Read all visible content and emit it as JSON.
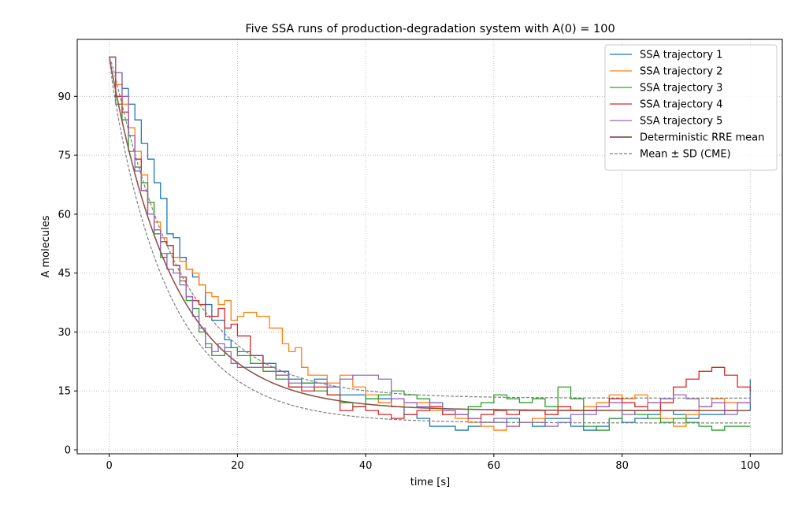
{
  "chart_data": {
    "type": "line",
    "title": "Five SSA runs of production-degradation system with A(0) = 100",
    "xlabel": "time [s]",
    "ylabel": "A molecules",
    "xlim": [
      -5,
      105
    ],
    "ylim": [
      -1,
      104.5
    ],
    "xticks": [
      0,
      20,
      40,
      60,
      80,
      100
    ],
    "yticks": [
      0,
      15,
      30,
      45,
      60,
      75,
      90
    ],
    "grid": true,
    "legend_position": "top-right",
    "series": [
      {
        "name": "SSA trajectory 1",
        "color": "#1f77b4",
        "style": "step",
        "points": [
          [
            0,
            100
          ],
          [
            1,
            96
          ],
          [
            2,
            92
          ],
          [
            3,
            88
          ],
          [
            4,
            84
          ],
          [
            5,
            78
          ],
          [
            6,
            74
          ],
          [
            7,
            68
          ],
          [
            8,
            64
          ],
          [
            9,
            55
          ],
          [
            10,
            54
          ],
          [
            11,
            49
          ],
          [
            12,
            46
          ],
          [
            13,
            44
          ],
          [
            14,
            42
          ],
          [
            15,
            37
          ],
          [
            16,
            33
          ],
          [
            18,
            28
          ],
          [
            19,
            26
          ],
          [
            20,
            25
          ],
          [
            22,
            24
          ],
          [
            24,
            22
          ],
          [
            26,
            20
          ],
          [
            28,
            18
          ],
          [
            30,
            17
          ],
          [
            32,
            18
          ],
          [
            34,
            16
          ],
          [
            36,
            14
          ],
          [
            40,
            13
          ],
          [
            44,
            11
          ],
          [
            46,
            9
          ],
          [
            48,
            8
          ],
          [
            50,
            6
          ],
          [
            52,
            6
          ],
          [
            54,
            5
          ],
          [
            56,
            6
          ],
          [
            58,
            7
          ],
          [
            60,
            7
          ],
          [
            62,
            8
          ],
          [
            64,
            7
          ],
          [
            66,
            6
          ],
          [
            68,
            8
          ],
          [
            70,
            8
          ],
          [
            72,
            6
          ],
          [
            74,
            5
          ],
          [
            76,
            6
          ],
          [
            78,
            8
          ],
          [
            80,
            7
          ],
          [
            82,
            8
          ],
          [
            84,
            9
          ],
          [
            86,
            10
          ],
          [
            88,
            9
          ],
          [
            90,
            8
          ],
          [
            92,
            9
          ],
          [
            94,
            9
          ],
          [
            96,
            10
          ],
          [
            98,
            10
          ],
          [
            100,
            18
          ]
        ]
      },
      {
        "name": "SSA trajectory 2",
        "color": "#ff7f0e",
        "style": "step",
        "points": [
          [
            0,
            100
          ],
          [
            1,
            93
          ],
          [
            2,
            88
          ],
          [
            3,
            82
          ],
          [
            4,
            76
          ],
          [
            5,
            70
          ],
          [
            6,
            63
          ],
          [
            7,
            58
          ],
          [
            8,
            54
          ],
          [
            9,
            52
          ],
          [
            10,
            49
          ],
          [
            11,
            48
          ],
          [
            12,
            46
          ],
          [
            13,
            45
          ],
          [
            14,
            42
          ],
          [
            15,
            40
          ],
          [
            16,
            39
          ],
          [
            17,
            37
          ],
          [
            18,
            38
          ],
          [
            19,
            33
          ],
          [
            20,
            34
          ],
          [
            21,
            35
          ],
          [
            23,
            34
          ],
          [
            25,
            31
          ],
          [
            27,
            27
          ],
          [
            28,
            25
          ],
          [
            29,
            26
          ],
          [
            30,
            21
          ],
          [
            31,
            19
          ],
          [
            34,
            17
          ],
          [
            36,
            19
          ],
          [
            38,
            16
          ],
          [
            40,
            14
          ],
          [
            42,
            12
          ],
          [
            44,
            11
          ],
          [
            46,
            12
          ],
          [
            48,
            12
          ],
          [
            50,
            10
          ],
          [
            52,
            9
          ],
          [
            54,
            8
          ],
          [
            56,
            7
          ],
          [
            58,
            6
          ],
          [
            60,
            5
          ],
          [
            62,
            6
          ],
          [
            64,
            7
          ],
          [
            66,
            8
          ],
          [
            68,
            9
          ],
          [
            70,
            10
          ],
          [
            72,
            10
          ],
          [
            74,
            11
          ],
          [
            76,
            12
          ],
          [
            78,
            14
          ],
          [
            80,
            13
          ],
          [
            82,
            14
          ],
          [
            84,
            12
          ],
          [
            86,
            8
          ],
          [
            88,
            6
          ],
          [
            90,
            9
          ],
          [
            92,
            11
          ],
          [
            94,
            13
          ],
          [
            96,
            12
          ],
          [
            98,
            12
          ],
          [
            100,
            13
          ]
        ]
      },
      {
        "name": "SSA trajectory 3",
        "color": "#2ca02c",
        "style": "step",
        "points": [
          [
            0,
            100
          ],
          [
            1,
            88
          ],
          [
            2,
            84
          ],
          [
            3,
            76
          ],
          [
            4,
            72
          ],
          [
            5,
            68
          ],
          [
            6,
            63
          ],
          [
            7,
            55
          ],
          [
            8,
            49
          ],
          [
            9,
            50
          ],
          [
            10,
            47
          ],
          [
            11,
            43
          ],
          [
            12,
            38
          ],
          [
            13,
            36
          ],
          [
            14,
            30
          ],
          [
            15,
            27
          ],
          [
            16,
            24
          ],
          [
            18,
            26
          ],
          [
            20,
            24
          ],
          [
            22,
            22
          ],
          [
            24,
            20
          ],
          [
            26,
            18
          ],
          [
            28,
            16
          ],
          [
            30,
            17
          ],
          [
            32,
            15
          ],
          [
            34,
            14
          ],
          [
            36,
            12
          ],
          [
            38,
            11
          ],
          [
            40,
            13
          ],
          [
            42,
            14
          ],
          [
            44,
            15
          ],
          [
            46,
            14
          ],
          [
            48,
            13
          ],
          [
            50,
            12
          ],
          [
            52,
            10
          ],
          [
            54,
            9
          ],
          [
            56,
            11
          ],
          [
            58,
            12
          ],
          [
            60,
            14
          ],
          [
            62,
            13
          ],
          [
            64,
            12
          ],
          [
            66,
            13
          ],
          [
            68,
            11
          ],
          [
            70,
            16
          ],
          [
            72,
            13
          ],
          [
            74,
            6
          ],
          [
            76,
            5
          ],
          [
            78,
            8
          ],
          [
            80,
            10
          ],
          [
            82,
            9
          ],
          [
            84,
            8
          ],
          [
            86,
            7
          ],
          [
            88,
            8
          ],
          [
            90,
            7
          ],
          [
            92,
            6
          ],
          [
            94,
            5
          ],
          [
            96,
            6
          ],
          [
            98,
            6
          ],
          [
            100,
            6
          ]
        ]
      },
      {
        "name": "SSA trajectory 4",
        "color": "#d62728",
        "style": "step",
        "points": [
          [
            0,
            100
          ],
          [
            1,
            90
          ],
          [
            2,
            86
          ],
          [
            3,
            80
          ],
          [
            4,
            74
          ],
          [
            5,
            66
          ],
          [
            6,
            60
          ],
          [
            7,
            56
          ],
          [
            8,
            53
          ],
          [
            9,
            52
          ],
          [
            10,
            47
          ],
          [
            11,
            44
          ],
          [
            12,
            39
          ],
          [
            13,
            38
          ],
          [
            14,
            37
          ],
          [
            15,
            34
          ],
          [
            17,
            36
          ],
          [
            18,
            31
          ],
          [
            19,
            32
          ],
          [
            20,
            29
          ],
          [
            22,
            24
          ],
          [
            24,
            21
          ],
          [
            26,
            19
          ],
          [
            28,
            16
          ],
          [
            30,
            15
          ],
          [
            32,
            16
          ],
          [
            34,
            14
          ],
          [
            36,
            10
          ],
          [
            38,
            11
          ],
          [
            40,
            10
          ],
          [
            42,
            9
          ],
          [
            44,
            8
          ],
          [
            46,
            9
          ],
          [
            48,
            10
          ],
          [
            50,
            11
          ],
          [
            52,
            9
          ],
          [
            54,
            9
          ],
          [
            56,
            8
          ],
          [
            58,
            9
          ],
          [
            60,
            10
          ],
          [
            62,
            9
          ],
          [
            64,
            10
          ],
          [
            66,
            10
          ],
          [
            68,
            9
          ],
          [
            70,
            11
          ],
          [
            72,
            10
          ],
          [
            74,
            10
          ],
          [
            76,
            11
          ],
          [
            78,
            13
          ],
          [
            80,
            12
          ],
          [
            82,
            11
          ],
          [
            84,
            10
          ],
          [
            86,
            12
          ],
          [
            88,
            16
          ],
          [
            90,
            18
          ],
          [
            92,
            20
          ],
          [
            94,
            21
          ],
          [
            96,
            19
          ],
          [
            98,
            16
          ],
          [
            100,
            15
          ]
        ]
      },
      {
        "name": "SSA trajectory 5",
        "color": "#9467bd",
        "style": "step",
        "points": [
          [
            0,
            100
          ],
          [
            1,
            96
          ],
          [
            2,
            90
          ],
          [
            3,
            80
          ],
          [
            4,
            71
          ],
          [
            5,
            66
          ],
          [
            6,
            60
          ],
          [
            7,
            56
          ],
          [
            8,
            50
          ],
          [
            9,
            46
          ],
          [
            10,
            45
          ],
          [
            11,
            42
          ],
          [
            12,
            39
          ],
          [
            13,
            34
          ],
          [
            14,
            31
          ],
          [
            15,
            26
          ],
          [
            16,
            25
          ],
          [
            17,
            27
          ],
          [
            18,
            25
          ],
          [
            19,
            22
          ],
          [
            20,
            21
          ],
          [
            22,
            21
          ],
          [
            24,
            21
          ],
          [
            26,
            19
          ],
          [
            28,
            17
          ],
          [
            30,
            16
          ],
          [
            32,
            17
          ],
          [
            34,
            16
          ],
          [
            36,
            18
          ],
          [
            38,
            19
          ],
          [
            40,
            19
          ],
          [
            42,
            18
          ],
          [
            44,
            13
          ],
          [
            46,
            12
          ],
          [
            48,
            11
          ],
          [
            50,
            12
          ],
          [
            52,
            10
          ],
          [
            54,
            9
          ],
          [
            56,
            8
          ],
          [
            58,
            7
          ],
          [
            60,
            8
          ],
          [
            62,
            6
          ],
          [
            64,
            7
          ],
          [
            66,
            7
          ],
          [
            68,
            6
          ],
          [
            70,
            7
          ],
          [
            72,
            9
          ],
          [
            74,
            9
          ],
          [
            76,
            11
          ],
          [
            78,
            12
          ],
          [
            80,
            9
          ],
          [
            82,
            10
          ],
          [
            84,
            12
          ],
          [
            86,
            13
          ],
          [
            88,
            14
          ],
          [
            90,
            13
          ],
          [
            92,
            11
          ],
          [
            94,
            12
          ],
          [
            96,
            9
          ],
          [
            98,
            12
          ],
          [
            100,
            14
          ]
        ]
      },
      {
        "name": "Deterministic RRE mean",
        "color": "#8c564b",
        "style": "line",
        "model": {
          "a0": 100,
          "steady": 10,
          "rate": 0.1,
          "t_max": 100
        }
      },
      {
        "name": "Mean ± SD (CME)",
        "color": "#7f7f7f",
        "style": "dashed",
        "model": {
          "a0": 100,
          "steady": 10,
          "rate": 0.1,
          "t_max": 100
        }
      }
    ]
  }
}
